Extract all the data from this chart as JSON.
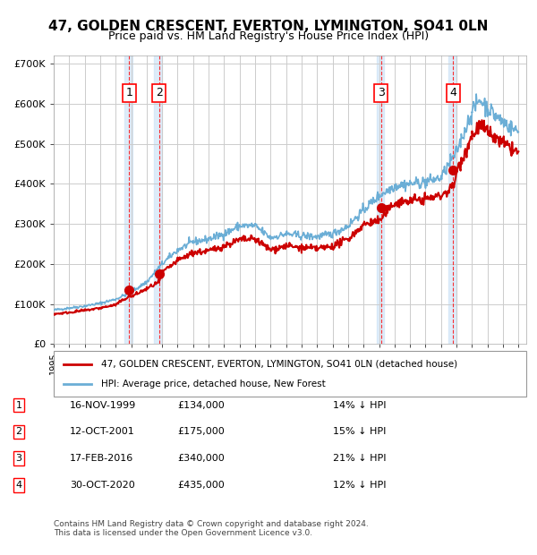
{
  "title": "47, GOLDEN CRESCENT, EVERTON, LYMINGTON, SO41 0LN",
  "subtitle": "Price paid vs. HM Land Registry's House Price Index (HPI)",
  "property_label": "47, GOLDEN CRESCENT, EVERTON, LYMINGTON, SO41 0LN (detached house)",
  "hpi_label": "HPI: Average price, detached house, New Forest",
  "footer": "Contains HM Land Registry data © Crown copyright and database right 2024.\nThis data is licensed under the Open Government Licence v3.0.",
  "sales": [
    {
      "num": 1,
      "date": "1999-11-16",
      "price": 134000,
      "label": "16-NOV-1999",
      "amount": "£134,000",
      "pct": "14% ↓ HPI"
    },
    {
      "num": 2,
      "date": "2001-10-12",
      "price": 175000,
      "label": "12-OCT-2001",
      "amount": "£175,000",
      "pct": "15% ↓ HPI"
    },
    {
      "num": 3,
      "date": "2016-02-17",
      "price": 340000,
      "label": "17-FEB-2016",
      "amount": "£340,000",
      "pct": "21% ↓ HPI"
    },
    {
      "num": 4,
      "date": "2020-10-30",
      "price": 435000,
      "label": "30-OCT-2020",
      "amount": "£435,000",
      "pct": "12% ↓ HPI"
    }
  ],
  "hpi_color": "#6baed6",
  "price_color": "#cc0000",
  "sale_marker_color": "#cc0000",
  "vspan_color": "#d0e4f7",
  "grid_color": "#cccccc",
  "ylim": [
    0,
    720000
  ],
  "yticks": [
    0,
    100000,
    200000,
    300000,
    400000,
    500000,
    600000,
    700000
  ],
  "ytick_labels": [
    "£0",
    "£100K",
    "£200K",
    "£300K",
    "£400K",
    "£500K",
    "£600K",
    "£700K"
  ],
  "xstart": 1995.0,
  "xend": 2025.5
}
